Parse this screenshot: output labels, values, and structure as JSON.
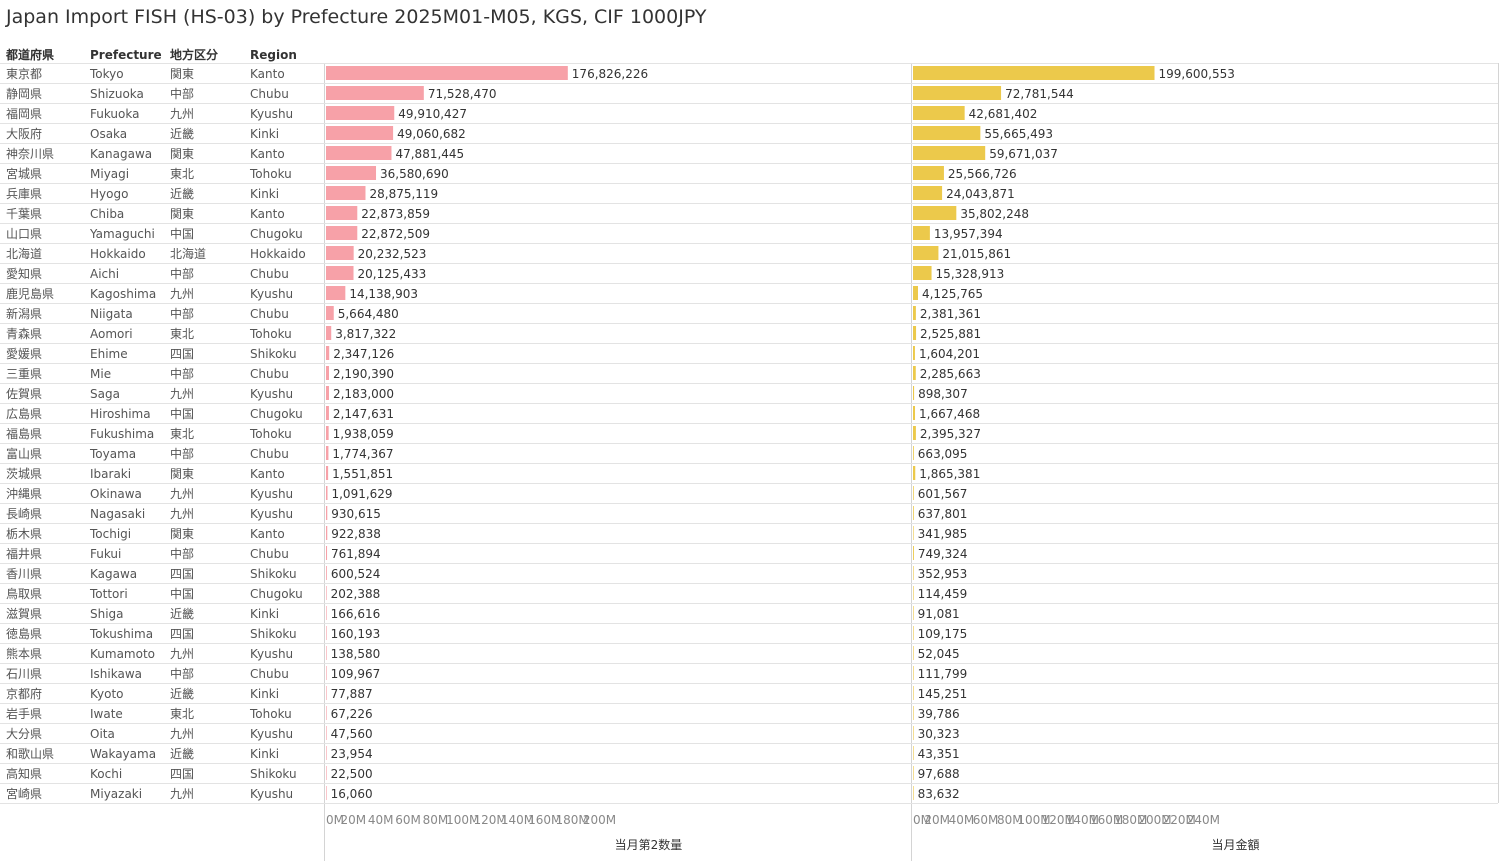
{
  "title": "Japan Import FISH (HS-03) by Prefecture 2025M01-M05, KGS, CIF 1000JPY",
  "colors": {
    "quantity_bar": "#f7a1a8",
    "value_bar": "#ecc94b",
    "grid": "#e3e3e3",
    "divider": "#d4d4d4"
  },
  "columns": [
    "都道府県",
    "Prefecture",
    "地方区分",
    "Region"
  ],
  "chart_data": {
    "type": "bar",
    "orientation": "horizontal",
    "grid": true,
    "rows": [
      {
        "jp": "東京都",
        "pref": "Tokyo",
        "area": "関東",
        "region": "Kanto",
        "qty": 176826226,
        "val": 199600553
      },
      {
        "jp": "静岡県",
        "pref": "Shizuoka",
        "area": "中部",
        "region": "Chubu",
        "qty": 71528470,
        "val": 72781544
      },
      {
        "jp": "福岡県",
        "pref": "Fukuoka",
        "area": "九州",
        "region": "Kyushu",
        "qty": 49910427,
        "val": 42681402
      },
      {
        "jp": "大阪府",
        "pref": "Osaka",
        "area": "近畿",
        "region": "Kinki",
        "qty": 49060682,
        "val": 55665493
      },
      {
        "jp": "神奈川県",
        "pref": "Kanagawa",
        "area": "関東",
        "region": "Kanto",
        "qty": 47881445,
        "val": 59671037
      },
      {
        "jp": "宮城県",
        "pref": "Miyagi",
        "area": "東北",
        "region": "Tohoku",
        "qty": 36580690,
        "val": 25566726
      },
      {
        "jp": "兵庫県",
        "pref": "Hyogo",
        "area": "近畿",
        "region": "Kinki",
        "qty": 28875119,
        "val": 24043871
      },
      {
        "jp": "千葉県",
        "pref": "Chiba",
        "area": "関東",
        "region": "Kanto",
        "qty": 22873859,
        "val": 35802248
      },
      {
        "jp": "山口県",
        "pref": "Yamaguchi",
        "area": "中国",
        "region": "Chugoku",
        "qty": 22872509,
        "val": 13957394
      },
      {
        "jp": "北海道",
        "pref": "Hokkaido",
        "area": "北海道",
        "region": "Hokkaido",
        "qty": 20232523,
        "val": 21015861
      },
      {
        "jp": "愛知県",
        "pref": "Aichi",
        "area": "中部",
        "region": "Chubu",
        "qty": 20125433,
        "val": 15328913
      },
      {
        "jp": "鹿児島県",
        "pref": "Kagoshima",
        "area": "九州",
        "region": "Kyushu",
        "qty": 14138903,
        "val": 4125765
      },
      {
        "jp": "新潟県",
        "pref": "Niigata",
        "area": "中部",
        "region": "Chubu",
        "qty": 5664480,
        "val": 2381361
      },
      {
        "jp": "青森県",
        "pref": "Aomori",
        "area": "東北",
        "region": "Tohoku",
        "qty": 3817322,
        "val": 2525881
      },
      {
        "jp": "愛媛県",
        "pref": "Ehime",
        "area": "四国",
        "region": "Shikoku",
        "qty": 2347126,
        "val": 1604201
      },
      {
        "jp": "三重県",
        "pref": "Mie",
        "area": "中部",
        "region": "Chubu",
        "qty": 2190390,
        "val": 2285663
      },
      {
        "jp": "佐賀県",
        "pref": "Saga",
        "area": "九州",
        "region": "Kyushu",
        "qty": 2183000,
        "val": 898307
      },
      {
        "jp": "広島県",
        "pref": "Hiroshima",
        "area": "中国",
        "region": "Chugoku",
        "qty": 2147631,
        "val": 1667468
      },
      {
        "jp": "福島県",
        "pref": "Fukushima",
        "area": "東北",
        "region": "Tohoku",
        "qty": 1938059,
        "val": 2395327
      },
      {
        "jp": "富山県",
        "pref": "Toyama",
        "area": "中部",
        "region": "Chubu",
        "qty": 1774367,
        "val": 663095
      },
      {
        "jp": "茨城県",
        "pref": "Ibaraki",
        "area": "関東",
        "region": "Kanto",
        "qty": 1551851,
        "val": 1865381
      },
      {
        "jp": "沖縄県",
        "pref": "Okinawa",
        "area": "九州",
        "region": "Kyushu",
        "qty": 1091629,
        "val": 601567
      },
      {
        "jp": "長崎県",
        "pref": "Nagasaki",
        "area": "九州",
        "region": "Kyushu",
        "qty": 930615,
        "val": 637801
      },
      {
        "jp": "栃木県",
        "pref": "Tochigi",
        "area": "関東",
        "region": "Kanto",
        "qty": 922838,
        "val": 341985
      },
      {
        "jp": "福井県",
        "pref": "Fukui",
        "area": "中部",
        "region": "Chubu",
        "qty": 761894,
        "val": 749324
      },
      {
        "jp": "香川県",
        "pref": "Kagawa",
        "area": "四国",
        "region": "Shikoku",
        "qty": 600524,
        "val": 352953
      },
      {
        "jp": "鳥取県",
        "pref": "Tottori",
        "area": "中国",
        "region": "Chugoku",
        "qty": 202388,
        "val": 114459
      },
      {
        "jp": "滋賀県",
        "pref": "Shiga",
        "area": "近畿",
        "region": "Kinki",
        "qty": 166616,
        "val": 91081
      },
      {
        "jp": "徳島県",
        "pref": "Tokushima",
        "area": "四国",
        "region": "Shikoku",
        "qty": 160193,
        "val": 109175
      },
      {
        "jp": "熊本県",
        "pref": "Kumamoto",
        "area": "九州",
        "region": "Kyushu",
        "qty": 138580,
        "val": 52045
      },
      {
        "jp": "石川県",
        "pref": "Ishikawa",
        "area": "中部",
        "region": "Chubu",
        "qty": 109967,
        "val": 111799
      },
      {
        "jp": "京都府",
        "pref": "Kyoto",
        "area": "近畿",
        "region": "Kinki",
        "qty": 77887,
        "val": 145251
      },
      {
        "jp": "岩手県",
        "pref": "Iwate",
        "area": "東北",
        "region": "Tohoku",
        "qty": 67226,
        "val": 39786
      },
      {
        "jp": "大分県",
        "pref": "Oita",
        "area": "九州",
        "region": "Kyushu",
        "qty": 47560,
        "val": 30323
      },
      {
        "jp": "和歌山県",
        "pref": "Wakayama",
        "area": "近畿",
        "region": "Kinki",
        "qty": 23954,
        "val": 43351
      },
      {
        "jp": "高知県",
        "pref": "Kochi",
        "area": "四国",
        "region": "Shikoku",
        "qty": 22500,
        "val": 97688
      },
      {
        "jp": "宮崎県",
        "pref": "Miyazaki",
        "area": "九州",
        "region": "Kyushu",
        "qty": 16060,
        "val": 83632
      }
    ],
    "panels": [
      {
        "measure": "qty",
        "xlabel": "当月第2数量",
        "xlim": [
          0,
          220000000
        ],
        "ticks": [
          "0M",
          "20M",
          "40M",
          "60M",
          "80M",
          "100M",
          "120M",
          "140M",
          "160M",
          "180M",
          "200M"
        ],
        "tick_values": [
          0,
          20000000,
          40000000,
          60000000,
          80000000,
          100000000,
          120000000,
          140000000,
          160000000,
          180000000,
          200000000
        ]
      },
      {
        "measure": "val",
        "xlabel": "当月金額",
        "xlim": [
          0,
          240000000
        ],
        "ticks": [
          "0M",
          "20M",
          "40M",
          "60M",
          "80M",
          "100M",
          "120M",
          "140M",
          "160M",
          "180M",
          "200M",
          "220M",
          "240M"
        ],
        "tick_values": [
          0,
          20000000,
          40000000,
          60000000,
          80000000,
          100000000,
          120000000,
          140000000,
          160000000,
          180000000,
          200000000,
          220000000,
          240000000
        ]
      }
    ]
  }
}
